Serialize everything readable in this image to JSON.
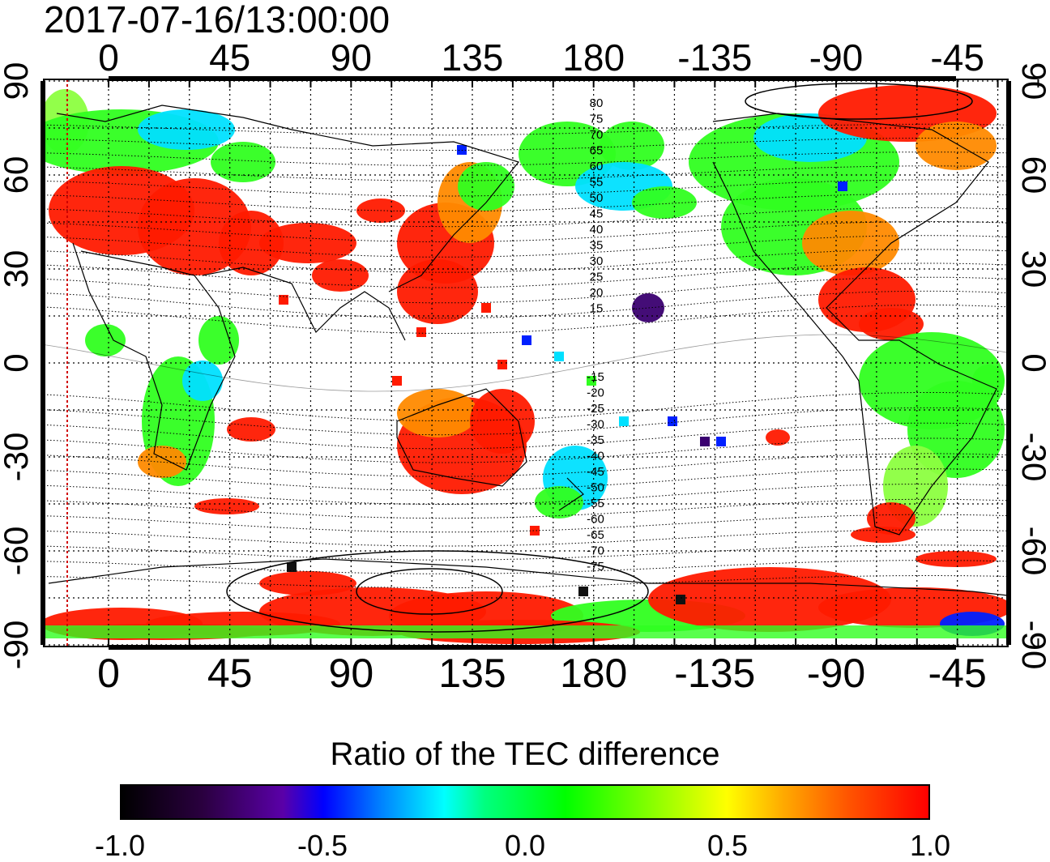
{
  "title": "2017-07-16/13:00:00",
  "map": {
    "lon_ticks_top": [
      "0",
      "45",
      "90",
      "135",
      "180",
      "-135",
      "-90",
      "-45"
    ],
    "lon_ticks_bottom": [
      "0",
      "45",
      "90",
      "135",
      "180",
      "-135",
      "-90",
      "-45"
    ],
    "lat_ticks_left": [
      "90",
      "60",
      "30",
      "0",
      "-30",
      "-60",
      "-90"
    ],
    "lat_ticks_right": [
      "90",
      "60",
      "30",
      "0",
      "-30",
      "-60",
      "-90"
    ],
    "contour_labels_north": [
      "80",
      "75",
      "70",
      "65",
      "60",
      "55",
      "50",
      "45",
      "40",
      "35",
      "30",
      "25",
      "20",
      "15"
    ],
    "contour_labels_south": [
      "-15",
      "-20",
      "-25",
      "-30",
      "-35",
      "-40",
      "-45",
      "-50",
      "-55",
      "-60",
      "-65",
      "-70",
      "-75"
    ],
    "colors": {
      "red": "#ff1a00",
      "orange": "#ff8a00",
      "yellow": "#ffe000",
      "green": "#30ff20",
      "lightgreen": "#8cff40",
      "cyan": "#00e0ff",
      "blue": "#0020ff",
      "purple": "#3a0070",
      "black": "#111111"
    }
  },
  "colorbar": {
    "title": "Ratio of the TEC difference",
    "ticks": [
      "-1.0",
      "-0.5",
      "0.0",
      "0.5",
      "1.0"
    ]
  }
}
